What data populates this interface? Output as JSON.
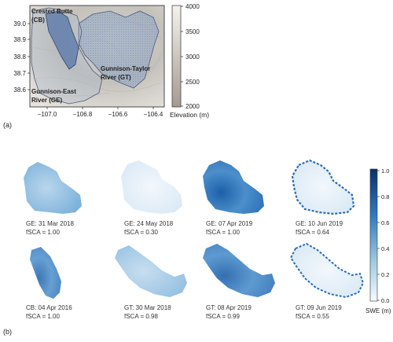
{
  "panel_a": {
    "label": "(a)",
    "x_ticks": [
      "−107.0",
      "−106.8",
      "−106.6",
      "−106.4"
    ],
    "y_ticks": [
      "39.0",
      "38.9",
      "38.8",
      "38.7",
      "38.6"
    ],
    "regions": [
      {
        "name_line1": "Crested Butte",
        "name_line2": "(CB)"
      },
      {
        "name_line1": "Gunnison-Taylor",
        "name_line2": "River (GT)"
      },
      {
        "name_line1": "Gunnison-East",
        "name_line2": "River (GE)"
      }
    ],
    "colorbar": {
      "ticks": [
        "4000",
        "3500",
        "3000",
        "2500",
        "2000"
      ],
      "label": "Elevation (m)",
      "colors": [
        "#f4f2ee",
        "#a49a90"
      ]
    }
  },
  "panel_b": {
    "label": "(b)",
    "maps": [
      {
        "date": "GE: 31 Mar 2018",
        "fsca": "fSCA = 1.00"
      },
      {
        "date": "GE: 24 May 2018",
        "fsca": "fSCA = 0.30"
      },
      {
        "date": "GE: 07 Apr 2019",
        "fsca": "fSCA = 1.00"
      },
      {
        "date": "GE: 10 Jun 2019",
        "fsca": "fSCA = 0.64"
      },
      {
        "date": "CB: 04 Apr 2016",
        "fsca": "fSCA = 1.00"
      },
      {
        "date": "GT: 30 Mar 2018",
        "fsca": "fSCA = 0.98"
      },
      {
        "date": "GT: 08 Apr 2019",
        "fsca": "fSCA = 0.99"
      },
      {
        "date": "GT: 09 Jun 2019",
        "fsca": "fSCA = 0.55"
      }
    ],
    "colorbar": {
      "ticks": [
        "1.0",
        "0.8",
        "0.6",
        "0.4",
        "0.2",
        "0.0"
      ],
      "label": "SWE (m)",
      "colors": [
        "#08306b",
        "#2f7ac0",
        "#9ecae1",
        "#f7fbff"
      ]
    }
  }
}
